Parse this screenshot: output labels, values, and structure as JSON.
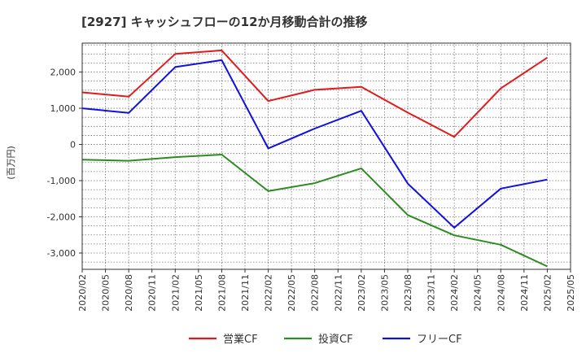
{
  "chart_data": {
    "type": "line",
    "title": "[2927]  キャッシュフローの12か月移動合計の推移",
    "ylabel": "(百万円)",
    "xlabel": "",
    "ylim": [
      -3450,
      2800
    ],
    "yticks": [
      2000,
      1000,
      0,
      -1000,
      -2000,
      -3000
    ],
    "ytick_labels": [
      "2,000",
      "1,000",
      "0",
      "-1,000",
      "-2,000",
      "-3,000"
    ],
    "x_labels": [
      "2020/02",
      "2020/05",
      "2020/08",
      "2020/11",
      "2021/02",
      "2021/05",
      "2021/08",
      "2021/11",
      "2022/02",
      "2022/05",
      "2022/08",
      "2022/11",
      "2023/02",
      "2023/05",
      "2023/08",
      "2023/11",
      "2024/02",
      "2024/05",
      "2024/08",
      "2024/11",
      "2025/02",
      "2025/05"
    ],
    "grid": true,
    "series": [
      {
        "name": "営業CF",
        "color": "#e31a1c",
        "points": [
          [
            0,
            1440
          ],
          [
            2,
            1320
          ],
          [
            4,
            2500
          ],
          [
            6,
            2600
          ],
          [
            8,
            1200
          ],
          [
            10,
            1510
          ],
          [
            12,
            1590
          ],
          [
            14,
            880
          ],
          [
            16,
            210
          ],
          [
            18,
            1550
          ],
          [
            20,
            2400
          ]
        ]
      },
      {
        "name": "投資CF",
        "color": "#2e8b22",
        "points": [
          [
            0,
            -420
          ],
          [
            2,
            -450
          ],
          [
            4,
            -350
          ],
          [
            6,
            -280
          ],
          [
            8,
            -1290
          ],
          [
            10,
            -1070
          ],
          [
            12,
            -660
          ],
          [
            14,
            -1950
          ],
          [
            16,
            -2510
          ],
          [
            18,
            -2770
          ],
          [
            20,
            -3370
          ]
        ]
      },
      {
        "name": "フリーCF",
        "color": "#1010e0",
        "points": [
          [
            0,
            1000
          ],
          [
            2,
            870
          ],
          [
            4,
            2140
          ],
          [
            6,
            2330
          ],
          [
            8,
            -110
          ],
          [
            10,
            440
          ],
          [
            12,
            930
          ],
          [
            14,
            -1080
          ],
          [
            16,
            -2300
          ],
          [
            18,
            -1220
          ],
          [
            20,
            -970
          ]
        ]
      }
    ],
    "legend": [
      "営業CF",
      "投資CF",
      "フリーCF"
    ],
    "legend_position": "bottom"
  }
}
